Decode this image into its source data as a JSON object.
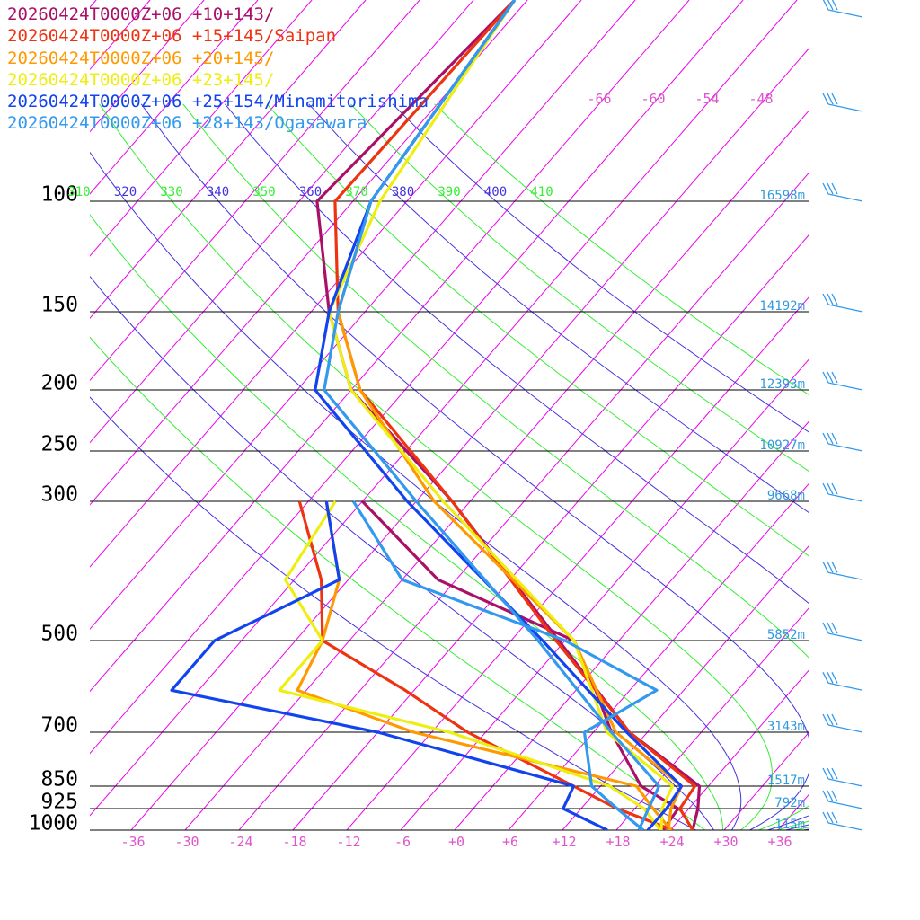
{
  "chart_data": {
    "type": "line",
    "title": "",
    "xlabel": "",
    "ylabel": "",
    "colors": {
      "isobar": "#000000",
      "isotherm": "#ee00ee",
      "theta_e_green": "#33ee33",
      "theta_e_blue": "#4433dd",
      "height_label": "#3399dd",
      "temp_label": "#dd55cc",
      "wind_barb": "#3399ee"
    },
    "pressure_levels": [
      {
        "label": "100",
        "p": 100,
        "height": "16598m"
      },
      {
        "label": "150",
        "p": 150,
        "height": "14192m"
      },
      {
        "label": "200",
        "p": 200,
        "height": "12393m"
      },
      {
        "label": "250",
        "p": 250,
        "height": "10927m"
      },
      {
        "label": "300",
        "p": 300,
        "height": "9668m"
      },
      {
        "label": "500",
        "p": 500,
        "height": "5852m"
      },
      {
        "label": "700",
        "p": 700,
        "height": "3143m"
      },
      {
        "label": "850",
        "p": 850,
        "height": "1517m"
      },
      {
        "label": "925",
        "p": 925,
        "height": "792m"
      },
      {
        "label": "1000",
        "p": 1000,
        "height": "115m"
      }
    ],
    "x_ticks": [
      "-36",
      "-30",
      "-24",
      "-18",
      "-12",
      "-6",
      "+0",
      "+6",
      "+12",
      "+18",
      "+24",
      "+30",
      "+36"
    ],
    "x_tick_values": [
      -36,
      -30,
      -24,
      -18,
      -12,
      -6,
      0,
      6,
      12,
      18,
      24,
      30,
      36
    ],
    "upper_temp_labels": [
      "-66",
      "-60",
      "-54",
      "-48"
    ],
    "theta_e_labels": [
      {
        "label": "310",
        "color": "#33ee33"
      },
      {
        "label": "320",
        "color": "#4433dd"
      },
      {
        "label": "330",
        "color": "#33ee33"
      },
      {
        "label": "340",
        "color": "#4433dd"
      },
      {
        "label": "350",
        "color": "#33ee33"
      },
      {
        "label": "360",
        "color": "#4433dd"
      },
      {
        "label": "370",
        "color": "#33ee33"
      },
      {
        "label": "380",
        "color": "#4433dd"
      },
      {
        "label": "390",
        "color": "#33ee33"
      },
      {
        "label": "400",
        "color": "#4433dd"
      },
      {
        "label": "410",
        "color": "#33ee33"
      }
    ],
    "series": [
      {
        "name": "20260424T0000Z+06 +10+143/",
        "color": "#aa1166",
        "temperature": [
          [
            1000,
            26.5
          ],
          [
            925,
            25.0
          ],
          [
            850,
            23.0
          ],
          [
            700,
            10.0
          ],
          [
            500,
            -6.7
          ],
          [
            300,
            -32.0
          ],
          [
            200,
            -54.0
          ],
          [
            150,
            -64.0
          ],
          [
            100,
            -76.0
          ]
        ],
        "dewpoint": [
          [
            1000,
            23.2
          ],
          [
            925,
            22.8
          ],
          [
            850,
            16.5
          ],
          [
            700,
            8.0
          ],
          [
            600,
            2.2
          ],
          [
            500,
            -5.0
          ],
          [
            400,
            -26.0
          ],
          [
            300,
            -42.0
          ]
        ]
      },
      {
        "name": "20260424T0000Z+06 +15+145/Saipan",
        "color": "#ee3311",
        "temperature": [
          [
            1000,
            26.5
          ],
          [
            925,
            23.0
          ],
          [
            850,
            22.5
          ],
          [
            700,
            10.0
          ],
          [
            500,
            -7.0
          ],
          [
            300,
            -32.0
          ],
          [
            200,
            -53.0
          ],
          [
            150,
            -63.0
          ],
          [
            100,
            -74.0
          ]
        ],
        "dewpoint": [
          [
            1000,
            24.3
          ],
          [
            925,
            16.0
          ],
          [
            850,
            9.0
          ],
          [
            700,
            -8.0
          ],
          [
            600,
            -19.0
          ],
          [
            500,
            -33.0
          ],
          [
            400,
            -39.0
          ],
          [
            300,
            -49.0
          ]
        ]
      },
      {
        "name": "20260424T0000Z+06 +20+145/",
        "color": "#ff9900",
        "temperature": [
          [
            1000,
            23.8
          ],
          [
            925,
            22.0
          ],
          [
            850,
            21.0
          ],
          [
            700,
            8.5
          ],
          [
            500,
            -5.0
          ],
          [
            300,
            -34.0
          ],
          [
            200,
            -53.0
          ],
          [
            150,
            -63.0
          ],
          [
            100,
            -70.0
          ]
        ],
        "dewpoint": [
          [
            1000,
            24.1
          ],
          [
            925,
            20.0
          ],
          [
            850,
            16.0
          ],
          [
            700,
            -14.0
          ],
          [
            600,
            -31.0
          ],
          [
            500,
            -33.0
          ],
          [
            400,
            -37.0
          ],
          [
            300,
            -46.0
          ]
        ]
      },
      {
        "name": "20260424T0000Z+06 +23+145/",
        "color": "#eeee11",
        "temperature": [
          [
            1000,
            23.0
          ],
          [
            925,
            21.0
          ],
          [
            850,
            20.0
          ],
          [
            700,
            7.5
          ],
          [
            500,
            -5.0
          ],
          [
            300,
            -33.0
          ],
          [
            200,
            -54.0
          ],
          [
            150,
            -64.0
          ],
          [
            100,
            -69.0
          ]
        ],
        "dewpoint": [
          [
            1000,
            22.9
          ],
          [
            925,
            19.0
          ],
          [
            850,
            13.0
          ],
          [
            700,
            -10.0
          ],
          [
            600,
            -33.0
          ],
          [
            500,
            -33.0
          ],
          [
            400,
            -43.0
          ],
          [
            300,
            -45.0
          ]
        ]
      },
      {
        "name": "20260424T0000Z+06 +25+154/Minamitorishima",
        "color": "#1144ee",
        "temperature": [
          [
            1000,
            21.5
          ],
          [
            925,
            21.5
          ],
          [
            850,
            21.0
          ],
          [
            700,
            9.7
          ],
          [
            500,
            -8.5
          ],
          [
            300,
            -37.0
          ],
          [
            200,
            -58.0
          ],
          [
            150,
            -64.0
          ],
          [
            100,
            -70.0
          ]
        ],
        "dewpoint": [
          [
            1000,
            17.0
          ],
          [
            925,
            10.0
          ],
          [
            850,
            9.0
          ],
          [
            700,
            -18.0
          ],
          [
            600,
            -45.0
          ],
          [
            500,
            -45.0
          ],
          [
            400,
            -37.0
          ],
          [
            300,
            -46.0
          ]
        ]
      },
      {
        "name": "20260424T0000Z+06 +28+143/Ogasawara",
        "color": "#3399ee",
        "temperature": [
          [
            1000,
            20.5
          ],
          [
            925,
            19.5
          ],
          [
            850,
            18.5
          ],
          [
            700,
            8.0
          ],
          [
            500,
            -9.0
          ],
          [
            300,
            -36.0
          ],
          [
            200,
            -57.0
          ],
          [
            150,
            -63.0
          ],
          [
            100,
            -70.0
          ]
        ],
        "dewpoint": [
          [
            1000,
            21.0
          ],
          [
            925,
            16.0
          ],
          [
            850,
            11.0
          ],
          [
            700,
            5.0
          ],
          [
            600,
            9.0
          ],
          [
            500,
            -6.0
          ],
          [
            400,
            -30.0
          ],
          [
            300,
            -43.0
          ]
        ]
      }
    ],
    "wind_barbs_hpa": [
      1000,
      925,
      850,
      700,
      600,
      500,
      400,
      300,
      250,
      200,
      150,
      100,
      70,
      50
    ]
  }
}
